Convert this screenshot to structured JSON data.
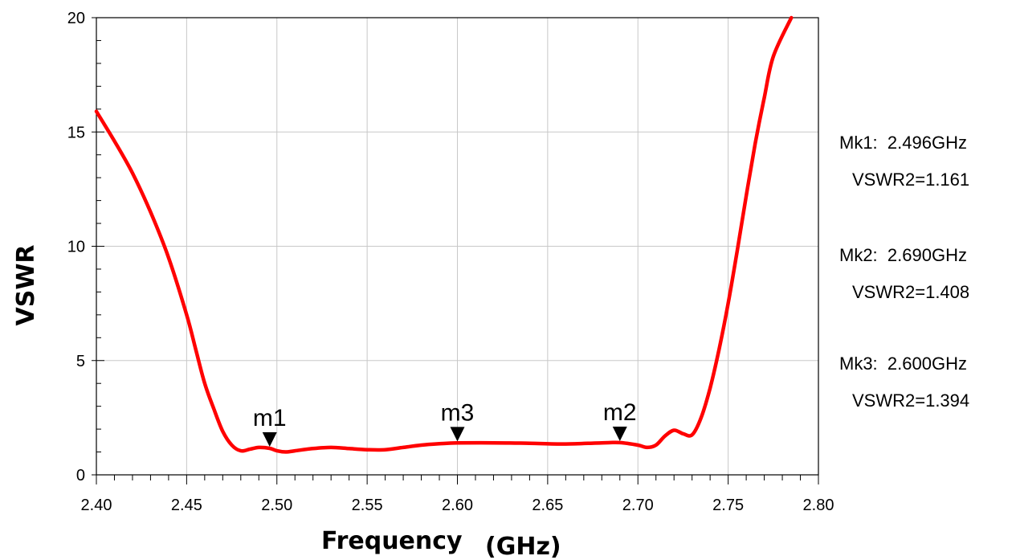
{
  "chart_data": {
    "type": "line",
    "xlabel": "Frequency",
    "xunit": "(GHz)",
    "ylabel": "VSWR",
    "xlim": [
      2.4,
      2.8
    ],
    "ylim": [
      0,
      20
    ],
    "grid": true,
    "x_ticks": [
      "2.40",
      "2.45",
      "2.50",
      "2.55",
      "2.60",
      "2.65",
      "2.70",
      "2.75",
      "2.80"
    ],
    "y_ticks": [
      "0",
      "5",
      "10",
      "15",
      "20"
    ],
    "series": [
      {
        "color": "#ff0000",
        "points": [
          [
            2.4,
            15.9
          ],
          [
            2.41,
            14.6
          ],
          [
            2.42,
            13.2
          ],
          [
            2.43,
            11.5
          ],
          [
            2.44,
            9.5
          ],
          [
            2.45,
            7.0
          ],
          [
            2.455,
            5.5
          ],
          [
            2.46,
            4.0
          ],
          [
            2.465,
            2.9
          ],
          [
            2.47,
            1.9
          ],
          [
            2.475,
            1.3
          ],
          [
            2.48,
            1.05
          ],
          [
            2.485,
            1.12
          ],
          [
            2.49,
            1.2
          ],
          [
            2.496,
            1.161
          ],
          [
            2.5,
            1.05
          ],
          [
            2.505,
            1.0
          ],
          [
            2.51,
            1.05
          ],
          [
            2.52,
            1.15
          ],
          [
            2.53,
            1.2
          ],
          [
            2.54,
            1.15
          ],
          [
            2.55,
            1.1
          ],
          [
            2.56,
            1.1
          ],
          [
            2.57,
            1.2
          ],
          [
            2.58,
            1.3
          ],
          [
            2.59,
            1.36
          ],
          [
            2.6,
            1.394
          ],
          [
            2.62,
            1.4
          ],
          [
            2.64,
            1.38
          ],
          [
            2.66,
            1.35
          ],
          [
            2.68,
            1.4
          ],
          [
            2.69,
            1.408
          ],
          [
            2.7,
            1.3
          ],
          [
            2.705,
            1.2
          ],
          [
            2.71,
            1.3
          ],
          [
            2.715,
            1.7
          ],
          [
            2.72,
            1.95
          ],
          [
            2.725,
            1.8
          ],
          [
            2.73,
            1.75
          ],
          [
            2.735,
            2.5
          ],
          [
            2.74,
            3.8
          ],
          [
            2.745,
            5.5
          ],
          [
            2.75,
            7.5
          ],
          [
            2.755,
            9.8
          ],
          [
            2.76,
            12.2
          ],
          [
            2.765,
            14.5
          ],
          [
            2.77,
            16.5
          ],
          [
            2.775,
            18.3
          ],
          [
            2.785,
            20.0
          ]
        ]
      }
    ],
    "markers": [
      {
        "name": "m1",
        "x": 2.496,
        "y": 1.161
      },
      {
        "name": "m2",
        "x": 2.69,
        "y": 1.408
      },
      {
        "name": "m3",
        "x": 2.6,
        "y": 1.394
      }
    ]
  },
  "readouts": [
    {
      "line1": "Mk1:  2.496GHz",
      "line2": "VSWR2=1.161"
    },
    {
      "line1": "Mk2:  2.690GHz",
      "line2": "VSWR2=1.408"
    },
    {
      "line1": "Mk3:  2.600GHz",
      "line2": "VSWR2=1.394"
    }
  ]
}
